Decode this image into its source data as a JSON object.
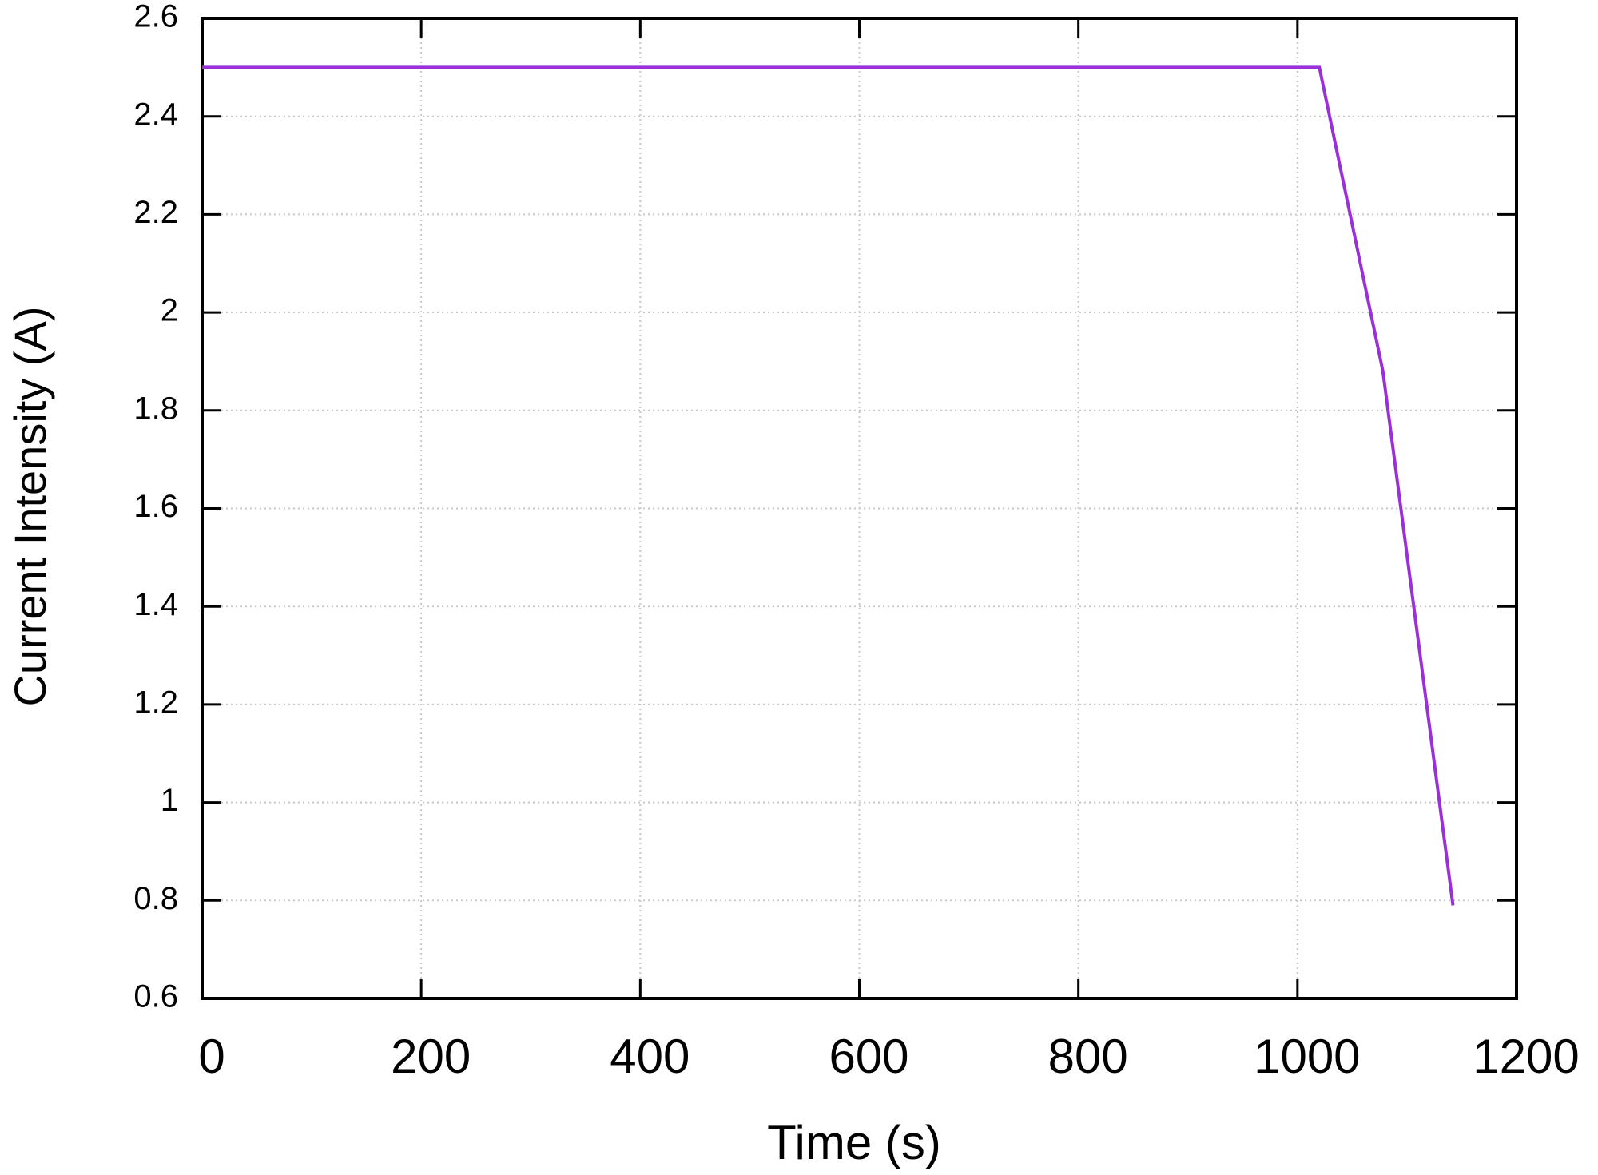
{
  "chart_data": {
    "type": "line",
    "x_label": "Time (s)",
    "y_label": "Current Intensity (A)",
    "x": [
      0,
      1020,
      1078,
      1142
    ],
    "values": [
      2.5,
      2.5,
      1.88,
      0.79
    ],
    "color": "#9b30d9",
    "xlim": [
      0,
      1200
    ],
    "xticks": [
      0,
      200,
      400,
      600,
      800,
      1000,
      1200
    ],
    "ylim": [
      0.6,
      2.6
    ],
    "yticks": [
      0.6,
      0.8,
      1,
      1.2,
      1.4,
      1.6,
      1.8,
      2,
      2.2,
      2.4,
      2.6
    ],
    "grid": true
  }
}
